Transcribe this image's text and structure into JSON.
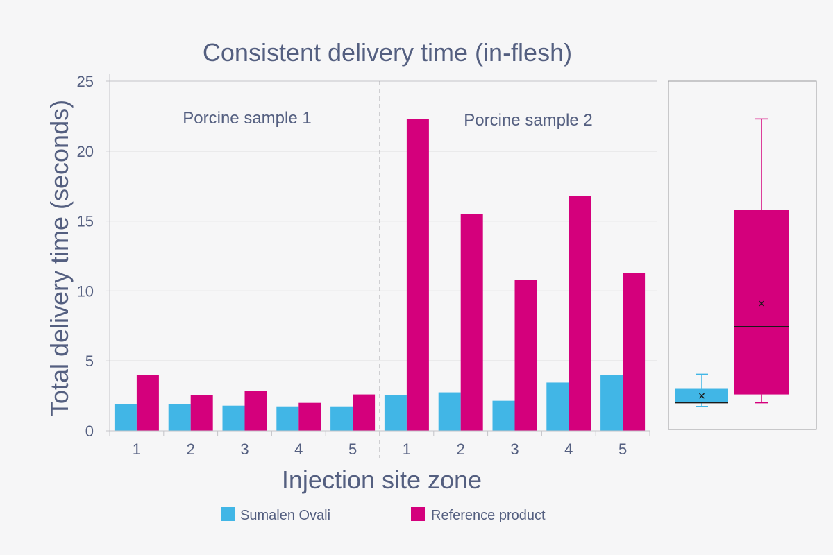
{
  "chart_data": {
    "type": "bar",
    "title": "Consistent delivery time (in-flesh)",
    "xlabel": "Injection site zone",
    "ylabel": "Total delivery time (seconds)",
    "ylim": [
      0,
      25
    ],
    "yticks": [
      0,
      5,
      10,
      15,
      20,
      25
    ],
    "grid": true,
    "groups": [
      {
        "label": "Porcine sample 1",
        "categories": [
          "1",
          "2",
          "3",
          "4",
          "5"
        ]
      },
      {
        "label": "Porcine sample 2",
        "categories": [
          "1",
          "2",
          "3",
          "4",
          "5"
        ]
      }
    ],
    "series": [
      {
        "name": "Sumalen Ovali",
        "color": "#41b6e6",
        "values": [
          1.9,
          1.9,
          1.8,
          1.75,
          1.75,
          2.55,
          2.75,
          2.15,
          3.45,
          4.0
        ]
      },
      {
        "name": "Reference product",
        "color": "#d4007c",
        "values": [
          4.0,
          2.55,
          2.85,
          2.0,
          2.6,
          22.3,
          15.5,
          10.8,
          16.8,
          11.3
        ]
      }
    ],
    "legend_position": "bottom",
    "boxplot": {
      "series": [
        {
          "name": "Sumalen Ovali",
          "color": "#41b6e6",
          "min": 1.75,
          "q1": 2.0,
          "median": 2.0,
          "q3": 3.0,
          "max": 4.05,
          "mean": 2.5
        },
        {
          "name": "Reference product",
          "color": "#d4007c",
          "min": 2.0,
          "q1": 2.6,
          "median": 7.45,
          "q3": 15.8,
          "max": 22.3,
          "mean": 9.1
        }
      ]
    }
  }
}
